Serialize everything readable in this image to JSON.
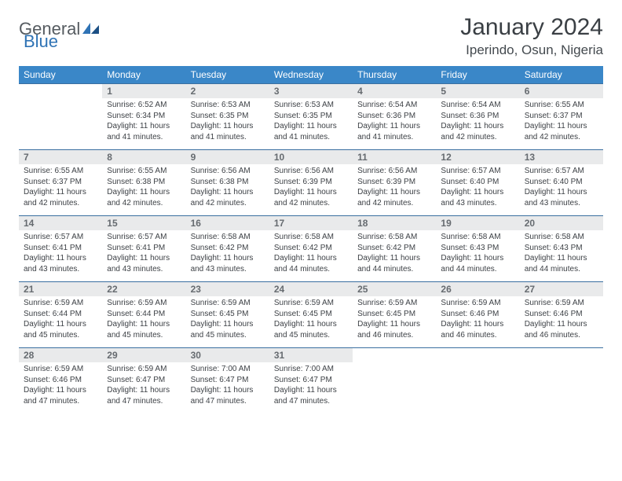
{
  "brand": {
    "general": "General",
    "blue": "Blue"
  },
  "title": "January 2024",
  "location": "Iperindo, Osun, Nigeria",
  "weekdays": [
    "Sunday",
    "Monday",
    "Tuesday",
    "Wednesday",
    "Thursday",
    "Friday",
    "Saturday"
  ],
  "colors": {
    "header_bg": "#3a87c8",
    "header_text": "#ffffff",
    "daynum_bg": "#e9eaeb",
    "daynum_text": "#666b70",
    "row_border": "#3a6fa0",
    "body_text": "#3d4146",
    "title_text": "#3a3f44",
    "brand_gray": "#555b60",
    "brand_blue": "#2f73b5"
  },
  "weeks": [
    [
      {
        "n": "",
        "sr": "",
        "ss": "",
        "dl": ""
      },
      {
        "n": "1",
        "sr": "Sunrise: 6:52 AM",
        "ss": "Sunset: 6:34 PM",
        "dl": "Daylight: 11 hours and 41 minutes."
      },
      {
        "n": "2",
        "sr": "Sunrise: 6:53 AM",
        "ss": "Sunset: 6:35 PM",
        "dl": "Daylight: 11 hours and 41 minutes."
      },
      {
        "n": "3",
        "sr": "Sunrise: 6:53 AM",
        "ss": "Sunset: 6:35 PM",
        "dl": "Daylight: 11 hours and 41 minutes."
      },
      {
        "n": "4",
        "sr": "Sunrise: 6:54 AM",
        "ss": "Sunset: 6:36 PM",
        "dl": "Daylight: 11 hours and 41 minutes."
      },
      {
        "n": "5",
        "sr": "Sunrise: 6:54 AM",
        "ss": "Sunset: 6:36 PM",
        "dl": "Daylight: 11 hours and 42 minutes."
      },
      {
        "n": "6",
        "sr": "Sunrise: 6:55 AM",
        "ss": "Sunset: 6:37 PM",
        "dl": "Daylight: 11 hours and 42 minutes."
      }
    ],
    [
      {
        "n": "7",
        "sr": "Sunrise: 6:55 AM",
        "ss": "Sunset: 6:37 PM",
        "dl": "Daylight: 11 hours and 42 minutes."
      },
      {
        "n": "8",
        "sr": "Sunrise: 6:55 AM",
        "ss": "Sunset: 6:38 PM",
        "dl": "Daylight: 11 hours and 42 minutes."
      },
      {
        "n": "9",
        "sr": "Sunrise: 6:56 AM",
        "ss": "Sunset: 6:38 PM",
        "dl": "Daylight: 11 hours and 42 minutes."
      },
      {
        "n": "10",
        "sr": "Sunrise: 6:56 AM",
        "ss": "Sunset: 6:39 PM",
        "dl": "Daylight: 11 hours and 42 minutes."
      },
      {
        "n": "11",
        "sr": "Sunrise: 6:56 AM",
        "ss": "Sunset: 6:39 PM",
        "dl": "Daylight: 11 hours and 42 minutes."
      },
      {
        "n": "12",
        "sr": "Sunrise: 6:57 AM",
        "ss": "Sunset: 6:40 PM",
        "dl": "Daylight: 11 hours and 43 minutes."
      },
      {
        "n": "13",
        "sr": "Sunrise: 6:57 AM",
        "ss": "Sunset: 6:40 PM",
        "dl": "Daylight: 11 hours and 43 minutes."
      }
    ],
    [
      {
        "n": "14",
        "sr": "Sunrise: 6:57 AM",
        "ss": "Sunset: 6:41 PM",
        "dl": "Daylight: 11 hours and 43 minutes."
      },
      {
        "n": "15",
        "sr": "Sunrise: 6:57 AM",
        "ss": "Sunset: 6:41 PM",
        "dl": "Daylight: 11 hours and 43 minutes."
      },
      {
        "n": "16",
        "sr": "Sunrise: 6:58 AM",
        "ss": "Sunset: 6:42 PM",
        "dl": "Daylight: 11 hours and 43 minutes."
      },
      {
        "n": "17",
        "sr": "Sunrise: 6:58 AM",
        "ss": "Sunset: 6:42 PM",
        "dl": "Daylight: 11 hours and 44 minutes."
      },
      {
        "n": "18",
        "sr": "Sunrise: 6:58 AM",
        "ss": "Sunset: 6:42 PM",
        "dl": "Daylight: 11 hours and 44 minutes."
      },
      {
        "n": "19",
        "sr": "Sunrise: 6:58 AM",
        "ss": "Sunset: 6:43 PM",
        "dl": "Daylight: 11 hours and 44 minutes."
      },
      {
        "n": "20",
        "sr": "Sunrise: 6:58 AM",
        "ss": "Sunset: 6:43 PM",
        "dl": "Daylight: 11 hours and 44 minutes."
      }
    ],
    [
      {
        "n": "21",
        "sr": "Sunrise: 6:59 AM",
        "ss": "Sunset: 6:44 PM",
        "dl": "Daylight: 11 hours and 45 minutes."
      },
      {
        "n": "22",
        "sr": "Sunrise: 6:59 AM",
        "ss": "Sunset: 6:44 PM",
        "dl": "Daylight: 11 hours and 45 minutes."
      },
      {
        "n": "23",
        "sr": "Sunrise: 6:59 AM",
        "ss": "Sunset: 6:45 PM",
        "dl": "Daylight: 11 hours and 45 minutes."
      },
      {
        "n": "24",
        "sr": "Sunrise: 6:59 AM",
        "ss": "Sunset: 6:45 PM",
        "dl": "Daylight: 11 hours and 45 minutes."
      },
      {
        "n": "25",
        "sr": "Sunrise: 6:59 AM",
        "ss": "Sunset: 6:45 PM",
        "dl": "Daylight: 11 hours and 46 minutes."
      },
      {
        "n": "26",
        "sr": "Sunrise: 6:59 AM",
        "ss": "Sunset: 6:46 PM",
        "dl": "Daylight: 11 hours and 46 minutes."
      },
      {
        "n": "27",
        "sr": "Sunrise: 6:59 AM",
        "ss": "Sunset: 6:46 PM",
        "dl": "Daylight: 11 hours and 46 minutes."
      }
    ],
    [
      {
        "n": "28",
        "sr": "Sunrise: 6:59 AM",
        "ss": "Sunset: 6:46 PM",
        "dl": "Daylight: 11 hours and 47 minutes."
      },
      {
        "n": "29",
        "sr": "Sunrise: 6:59 AM",
        "ss": "Sunset: 6:47 PM",
        "dl": "Daylight: 11 hours and 47 minutes."
      },
      {
        "n": "30",
        "sr": "Sunrise: 7:00 AM",
        "ss": "Sunset: 6:47 PM",
        "dl": "Daylight: 11 hours and 47 minutes."
      },
      {
        "n": "31",
        "sr": "Sunrise: 7:00 AM",
        "ss": "Sunset: 6:47 PM",
        "dl": "Daylight: 11 hours and 47 minutes."
      },
      {
        "n": "",
        "sr": "",
        "ss": "",
        "dl": ""
      },
      {
        "n": "",
        "sr": "",
        "ss": "",
        "dl": ""
      },
      {
        "n": "",
        "sr": "",
        "ss": "",
        "dl": ""
      }
    ]
  ]
}
